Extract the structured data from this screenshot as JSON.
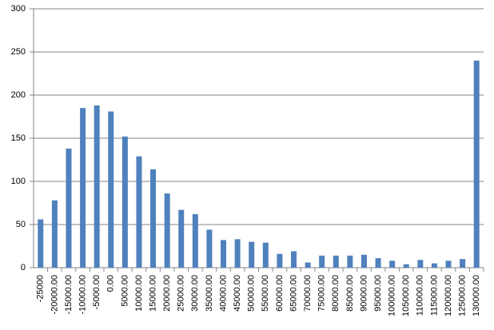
{
  "chart_data": {
    "type": "bar",
    "categories": [
      "-25000",
      "-20000.00",
      "-15000.00",
      "-10000.00",
      "-5000.00",
      "0.00",
      "5000.00",
      "10000.00",
      "15000.00",
      "20000.00",
      "25000.00",
      "30000.00",
      "35000.00",
      "40000.00",
      "45000.00",
      "50000.00",
      "55000.00",
      "60000.00",
      "65000.00",
      "70000.00",
      "75000.00",
      "80000.00",
      "85000.00",
      "90000.00",
      "95000.00",
      "100000.00",
      "105000.00",
      "110000.00",
      "115000.00",
      "120000.00",
      "125000.00",
      "130000.00"
    ],
    "values": [
      56,
      78,
      138,
      185,
      188,
      181,
      152,
      129,
      114,
      86,
      67,
      62,
      44,
      32,
      33,
      30,
      29,
      16,
      19,
      6,
      14,
      14,
      14,
      15,
      11,
      8,
      4,
      9,
      5,
      8,
      10,
      240
    ],
    "color": "#4f81bd",
    "ylim": [
      0,
      300
    ],
    "yticks": [
      0,
      50,
      100,
      150,
      200,
      250,
      300
    ],
    "grid": true
  }
}
